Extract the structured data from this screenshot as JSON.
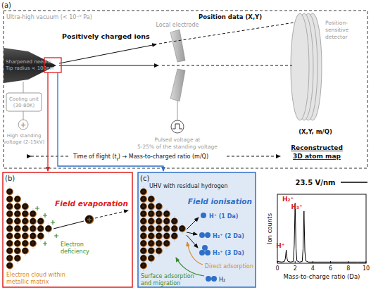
{
  "panels": {
    "a": {
      "label": "(a)",
      "vacuum": "Ultra-high vacuum (< 10⁻⁹ Pa)",
      "needle": [
        "Sharpened needle",
        "Tip radius < 100nm"
      ],
      "ions": "Positively charged ions",
      "electrode": "Local electrode",
      "position_data": "Position data (X,Y)",
      "detector": [
        "Position-",
        "sensitive",
        "detector"
      ],
      "cooling": [
        "Cooling unit",
        "(30-80K)"
      ],
      "voltage_symbol": "+",
      "voltage": [
        "High standing",
        "voltage (2-15kV)"
      ],
      "pulse": [
        "Pulsed voltage at",
        "5-25% of the standing voltage"
      ],
      "detector_data": "(X,Y, m/Q)",
      "tof": [
        "Time of flight (t",
        "f",
        ") → Mass-to-charged ratio (m/Q)"
      ],
      "reconstruction": [
        "Reconstructed",
        "3D atom map"
      ]
    },
    "b": {
      "label": "(b)",
      "title": "Field evaporation",
      "deficiency": [
        "Electron",
        "deficiency"
      ],
      "cloud": [
        "Electron cloud within",
        "metallic matrix"
      ]
    },
    "c": {
      "label": "(c)",
      "env": "UHV with residual hydrogen",
      "title": "Field ionisation",
      "ions": [
        "H⁺ (1 Da)",
        "H₂⁺ (2 Da)",
        "H₃⁺ (3 Da)"
      ],
      "direct": "Direct adsorption",
      "molecule": "H₂",
      "surface": [
        "Surface adsorption",
        "and migration"
      ]
    }
  },
  "chart_data": {
    "type": "line",
    "title": "23.5 V/nm",
    "x_label": "Mass-to-charge ratio (Da)",
    "y_label": "Ion counts",
    "x": [
      0,
      0.5,
      0.8,
      0.9,
      1.0,
      1.1,
      1.2,
      1.5,
      1.8,
      1.9,
      2.0,
      2.1,
      2.2,
      2.5,
      2.8,
      2.9,
      3.0,
      3.1,
      3.2,
      3.5,
      4,
      5,
      6,
      7,
      8,
      9,
      10
    ],
    "series": [
      {
        "color": "#000000",
        "values": [
          0.03,
          0.02,
          0.03,
          0.08,
          0.22,
          0.07,
          0.03,
          0.02,
          0.03,
          0.3,
          1.0,
          0.25,
          0.04,
          0.02,
          0.03,
          0.25,
          0.87,
          0.2,
          0.04,
          0.02,
          0.02,
          0.02,
          0.02,
          0.02,
          0.02,
          0.02,
          0.02
        ]
      }
    ],
    "xlim": [
      0,
      10
    ],
    "ylim": [
      0,
      1.15
    ],
    "xticks": [
      0,
      2,
      4,
      6,
      8,
      10
    ],
    "tick_labels": "x",
    "grid": false,
    "annotations": [
      {
        "text": "H⁺",
        "x": 1
      },
      {
        "text": "H₂⁺",
        "x": 2
      },
      {
        "text": "H₃⁺",
        "x": 3
      }
    ]
  }
}
